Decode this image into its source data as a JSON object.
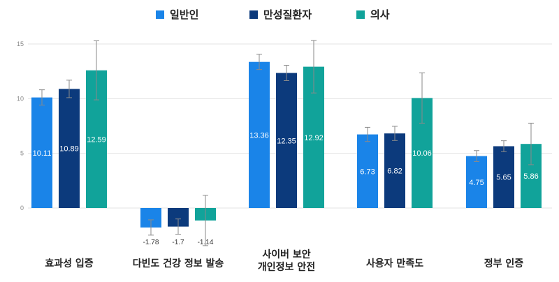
{
  "chart_data": {
    "type": "bar",
    "title": "",
    "xlabel": "",
    "ylabel": "",
    "ylim": [
      -2.5,
      15
    ],
    "yticks": [
      0,
      5,
      10,
      15
    ],
    "grid": true,
    "legend_position": "top-center",
    "categories": [
      [
        "효과성 입증"
      ],
      [
        "다빈도 건강 정보 발송"
      ],
      [
        "사이버 보안",
        "개인정보 안전"
      ],
      [
        "사용자 만족도"
      ],
      [
        "정부 인증"
      ]
    ],
    "series": [
      {
        "name": "일반인",
        "color": "#1a84e8",
        "values": [
          10.11,
          -1.78,
          13.36,
          6.73,
          4.75
        ],
        "labels": [
          "10.11",
          "-1.78",
          "13.36",
          "6.73",
          "4.75"
        ],
        "errors": [
          0.7,
          0.7,
          0.7,
          0.65,
          0.5
        ]
      },
      {
        "name": "만성질환자",
        "color": "#0c3a7c",
        "values": [
          10.89,
          -1.7,
          12.35,
          6.82,
          5.65
        ],
        "labels": [
          "10.89",
          "-1.7",
          "12.35",
          "6.82",
          "5.65"
        ],
        "errors": [
          0.8,
          0.7,
          0.7,
          0.65,
          0.5
        ]
      },
      {
        "name": "의사",
        "color": "#11a39a",
        "values": [
          12.59,
          -1.14,
          12.92,
          10.06,
          5.86
        ],
        "labels": [
          "12.59",
          "-1.14",
          "12.92",
          "10.06",
          "5.86"
        ],
        "errors": [
          2.7,
          2.3,
          2.4,
          2.3,
          1.9
        ]
      }
    ]
  }
}
